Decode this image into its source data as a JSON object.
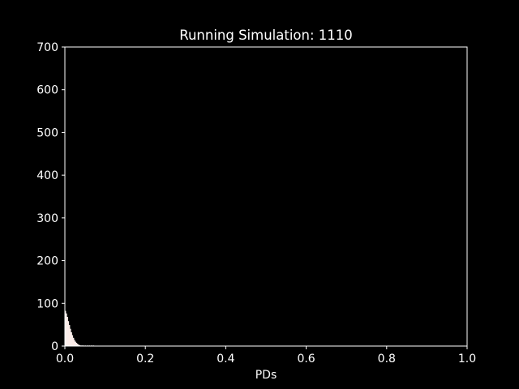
{
  "chart_data": {
    "type": "bar",
    "title": "Running Simulation: 1110",
    "xlabel": "PDs",
    "ylabel": "",
    "xlim": [
      0,
      1
    ],
    "ylim": [
      0,
      700
    ],
    "x_ticks": [
      "0.0",
      "0.2",
      "0.4",
      "0.6",
      "0.8",
      "1.0"
    ],
    "y_ticks": [
      "0",
      "100",
      "200",
      "300",
      "400",
      "500",
      "600",
      "700"
    ],
    "grid": false,
    "bin_width": 0.0025,
    "bins": [
      {
        "x": 0.0,
        "value": 82
      },
      {
        "x": 0.0025,
        "value": 76
      },
      {
        "x": 0.005,
        "value": 68
      },
      {
        "x": 0.0075,
        "value": 58
      },
      {
        "x": 0.01,
        "value": 49
      },
      {
        "x": 0.0125,
        "value": 40
      },
      {
        "x": 0.015,
        "value": 32
      },
      {
        "x": 0.0175,
        "value": 25
      },
      {
        "x": 0.02,
        "value": 19
      },
      {
        "x": 0.0225,
        "value": 14
      },
      {
        "x": 0.025,
        "value": 10
      },
      {
        "x": 0.0275,
        "value": 7
      },
      {
        "x": 0.03,
        "value": 5
      },
      {
        "x": 0.0325,
        "value": 3
      },
      {
        "x": 0.035,
        "value": 2
      },
      {
        "x": 0.0375,
        "value": 1
      },
      {
        "x": 0.04,
        "value": 1
      },
      {
        "x": 0.0425,
        "value": 1
      },
      {
        "x": 0.045,
        "value": 1
      },
      {
        "x": 0.05,
        "value": 1
      },
      {
        "x": 0.055,
        "value": 1
      },
      {
        "x": 0.06,
        "value": 1
      },
      {
        "x": 0.065,
        "value": 1
      },
      {
        "x": 0.07,
        "value": 1
      }
    ],
    "colors": {
      "background": "#000000",
      "axes": "#ffffff",
      "bar_fill": "#fde9e4",
      "bar_edge": "#ffffff"
    }
  }
}
